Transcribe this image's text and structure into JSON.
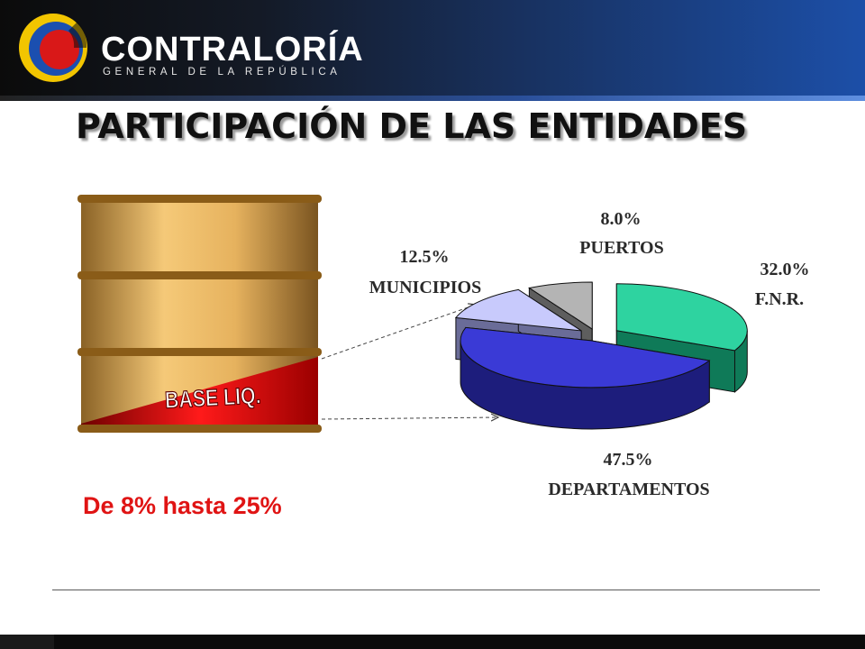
{
  "header": {
    "org_name": "CONTRALORÍA",
    "org_subtitle": "GENERAL DE LA REPÚBLICA",
    "logo_colors": [
      "#f2c500",
      "#1b4fb0",
      "#d91818"
    ]
  },
  "slide": {
    "title": "PARTICIPACIÓN DE LAS ENTIDADES",
    "barrel_label": "BASE LIQ.",
    "range_text": "De 8% hasta 25%"
  },
  "chart_data": {
    "type": "pie",
    "style": "3d-exploded",
    "slices": [
      {
        "name": "F.N.R.",
        "value": 32.0,
        "label": "32.0%",
        "color": "#2ed3a0",
        "side_color": "#0f7a58"
      },
      {
        "name": "DEPARTAMENTOS",
        "value": 47.5,
        "label": "47.5%",
        "color": "#3a3ad6",
        "side_color": "#1d1d7c"
      },
      {
        "name": "MUNICIPIOS",
        "value": 12.5,
        "label": "12.5%",
        "color": "#c8cafc",
        "side_color": "#6a6c98"
      },
      {
        "name": "PUERTOS",
        "value": 8.0,
        "label": "8.0%",
        "color": "#b4b4b4",
        "side_color": "#5e5e5e"
      }
    ]
  }
}
